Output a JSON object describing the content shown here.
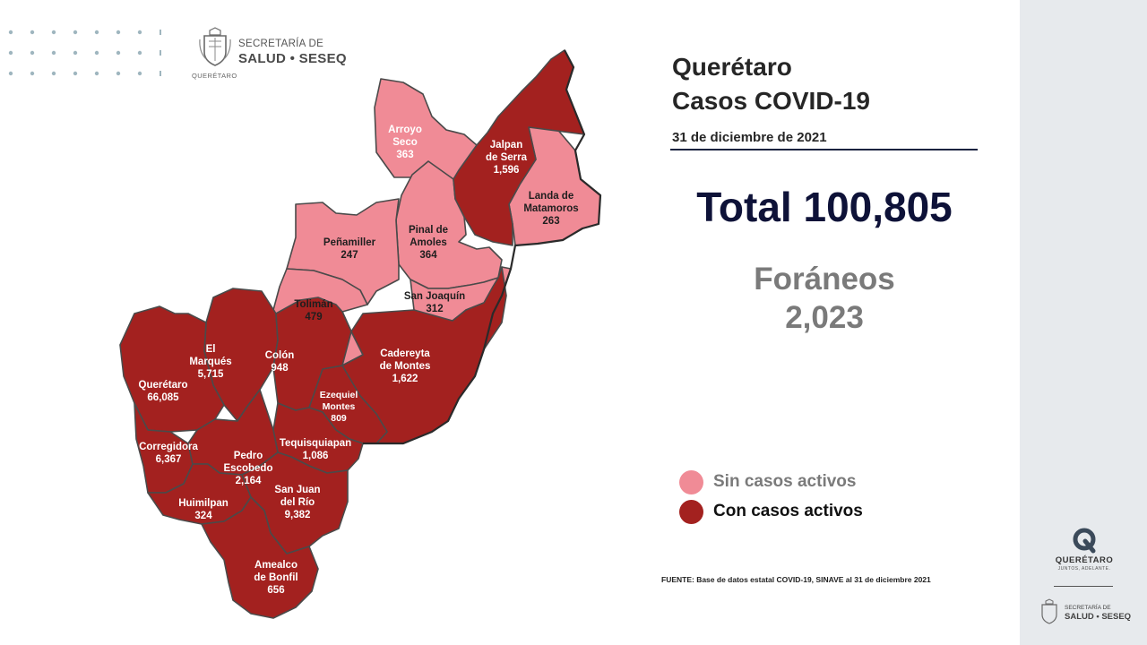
{
  "header": {
    "agency_line1": "SECRETARÍA DE",
    "agency_line2": "SALUD • SESEQ",
    "logo_caption": "QUERÉTARO"
  },
  "title": {
    "line1": "Querétaro",
    "line2": "Casos COVID-19"
  },
  "date": "31 de diciembre de 2021",
  "total": "Total 100,805",
  "foraneos": {
    "label": "Foráneos",
    "value": "2,023"
  },
  "legend": {
    "inactive": {
      "label": "Sin casos activos",
      "color": "#f08b96"
    },
    "active": {
      "label": "Con casos activos",
      "color": "#a3211f"
    }
  },
  "source": "FUENTE: Base de datos estatal COVID-19, SINAVE al 31 de diciembre 2021",
  "municipalities": [
    {
      "name": [
        "Arroyo",
        "Seco"
      ],
      "cases": "363",
      "status": "inactive"
    },
    {
      "name": [
        "Jalpan",
        "de Serra"
      ],
      "cases": "1,596",
      "status": "active"
    },
    {
      "name": [
        "Landa de",
        "Matamoros"
      ],
      "cases": "263",
      "status": "inactive"
    },
    {
      "name": [
        "Pinal de",
        "Amoles"
      ],
      "cases": "364",
      "status": "inactive"
    },
    {
      "name": [
        "Peñamiller"
      ],
      "cases": "247",
      "status": "inactive"
    },
    {
      "name": [
        "San Joaquín"
      ],
      "cases": "312",
      "status": "inactive"
    },
    {
      "name": [
        "Tolimán"
      ],
      "cases": "479",
      "status": "inactive"
    },
    {
      "name": [
        "Cadereyta",
        "de Montes"
      ],
      "cases": "1,622",
      "status": "active"
    },
    {
      "name": [
        "El",
        "Marqués"
      ],
      "cases": "5,715",
      "status": "active"
    },
    {
      "name": [
        "Colón"
      ],
      "cases": "948",
      "status": "active"
    },
    {
      "name": [
        "Querétaro"
      ],
      "cases": "66,085",
      "status": "active"
    },
    {
      "name": [
        "Ezequiel",
        "Montes"
      ],
      "cases": "809",
      "status": "active"
    },
    {
      "name": [
        "Tequisquiapan"
      ],
      "cases": "1,086",
      "status": "active"
    },
    {
      "name": [
        "Corregidora"
      ],
      "cases": "6,367",
      "status": "active"
    },
    {
      "name": [
        "Pedro",
        "Escobedo"
      ],
      "cases": "2,164",
      "status": "active"
    },
    {
      "name": [
        "San Juan",
        "del Río"
      ],
      "cases": "9,382",
      "status": "active"
    },
    {
      "name": [
        "Huimilpan"
      ],
      "cases": "324",
      "status": "active"
    },
    {
      "name": [
        "Amealco",
        "de Bonfil"
      ],
      "cases": "656",
      "status": "active"
    }
  ],
  "sidebar": {
    "logo_name": "QUERÉTARO",
    "logo_tagline": "JUNTOS, ADELANTE.",
    "agency_line1": "SECRETARÍA DE",
    "agency_line2": "SALUD • SESEQ"
  }
}
